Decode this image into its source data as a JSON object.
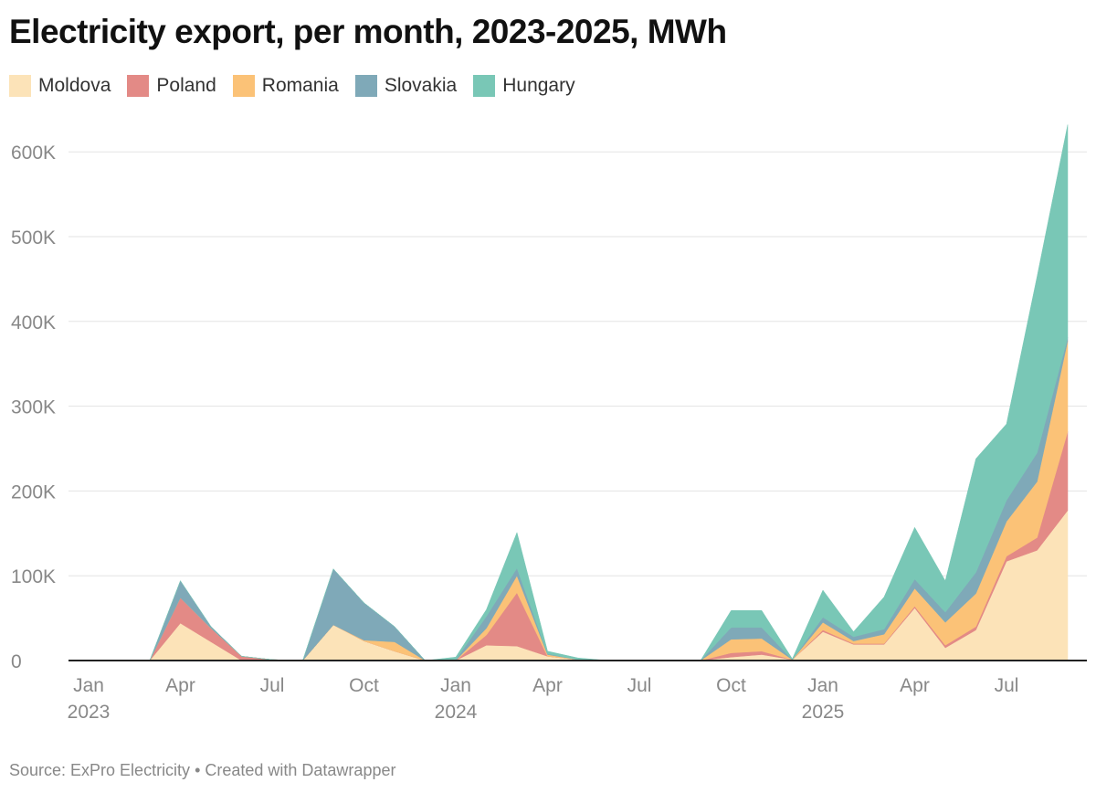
{
  "title": "Electricity export, per month, 2023-2025, MWh",
  "source": "Source: ExPro Electricity • Created with Datawrapper",
  "chart_data": {
    "type": "area",
    "stacked": true,
    "title": "Electricity export, per month, 2023-2025, MWh",
    "xlabel": "",
    "ylabel": "",
    "ylim": [
      0,
      640000
    ],
    "grid": true,
    "legend": "top-left",
    "yticks": [
      0,
      100000,
      200000,
      300000,
      400000,
      500000,
      600000
    ],
    "ytick_labels": [
      "0",
      "100K",
      "200K",
      "300K",
      "400K",
      "500K",
      "600K"
    ],
    "xticks": [
      {
        "index": 0,
        "label": "Jan",
        "year": "2023"
      },
      {
        "index": 3,
        "label": "Apr",
        "year": ""
      },
      {
        "index": 6,
        "label": "Jul",
        "year": ""
      },
      {
        "index": 9,
        "label": "Oct",
        "year": ""
      },
      {
        "index": 12,
        "label": "Jan",
        "year": "2024"
      },
      {
        "index": 15,
        "label": "Apr",
        "year": ""
      },
      {
        "index": 18,
        "label": "Jul",
        "year": ""
      },
      {
        "index": 21,
        "label": "Oct",
        "year": ""
      },
      {
        "index": 24,
        "label": "Jan",
        "year": "2025"
      },
      {
        "index": 27,
        "label": "Apr",
        "year": ""
      },
      {
        "index": 30,
        "label": "Jul",
        "year": ""
      }
    ],
    "x": [
      "2023-01",
      "2023-02",
      "2023-03",
      "2023-04",
      "2023-05",
      "2023-06",
      "2023-07",
      "2023-08",
      "2023-09",
      "2023-10",
      "2023-11",
      "2023-12",
      "2024-01",
      "2024-02",
      "2024-03",
      "2024-04",
      "2024-05",
      "2024-06",
      "2024-07",
      "2024-08",
      "2024-09",
      "2024-10",
      "2024-11",
      "2024-12",
      "2025-01",
      "2025-02",
      "2025-03",
      "2025-04",
      "2025-05",
      "2025-06",
      "2025-07",
      "2025-08",
      "2025-09"
    ],
    "series": [
      {
        "name": "Moldova",
        "color": "#fce3b8",
        "values": [
          0,
          0,
          0,
          44000,
          22000,
          0,
          0,
          0,
          42000,
          23000,
          11000,
          0,
          0,
          18000,
          17000,
          5000,
          1000,
          0,
          0,
          0,
          0,
          4000,
          7000,
          1000,
          34000,
          19000,
          19000,
          62000,
          15000,
          36000,
          117000,
          130000,
          177000
        ]
      },
      {
        "name": "Poland",
        "color": "#e38a86",
        "values": [
          0,
          0,
          0,
          30000,
          16000,
          5000,
          1000,
          0,
          0,
          0,
          0,
          0,
          0,
          12000,
          63000,
          0,
          0,
          0,
          0,
          0,
          0,
          5000,
          4000,
          0,
          2000,
          1000,
          1000,
          2000,
          3000,
          4000,
          6000,
          15000,
          93000
        ]
      },
      {
        "name": "Romania",
        "color": "#fbc277",
        "values": [
          0,
          0,
          0,
          0,
          0,
          0,
          0,
          0,
          0,
          1000,
          11000,
          0,
          0,
          8000,
          20000,
          2000,
          0,
          0,
          0,
          0,
          0,
          16000,
          15000,
          0,
          9000,
          3000,
          11000,
          21000,
          27000,
          39000,
          41000,
          66000,
          107000
        ]
      },
      {
        "name": "Slovakia",
        "color": "#7fa9b8",
        "values": [
          0,
          0,
          0,
          20000,
          2000,
          0,
          0,
          0,
          66000,
          44000,
          18000,
          0,
          1000,
          14000,
          9000,
          1000,
          0,
          0,
          0,
          0,
          0,
          14000,
          13000,
          0,
          6000,
          5000,
          6000,
          11000,
          12000,
          25000,
          25000,
          34000,
          4000
        ]
      },
      {
        "name": "Hungary",
        "color": "#79c7b6",
        "values": [
          0,
          0,
          0,
          0,
          0,
          0,
          0,
          0,
          0,
          0,
          0,
          0,
          3000,
          8000,
          42000,
          3000,
          2000,
          0,
          0,
          0,
          0,
          20000,
          20000,
          1000,
          32000,
          6000,
          38000,
          61000,
          37000,
          134000,
          90000,
          208000,
          251000
        ]
      }
    ]
  }
}
